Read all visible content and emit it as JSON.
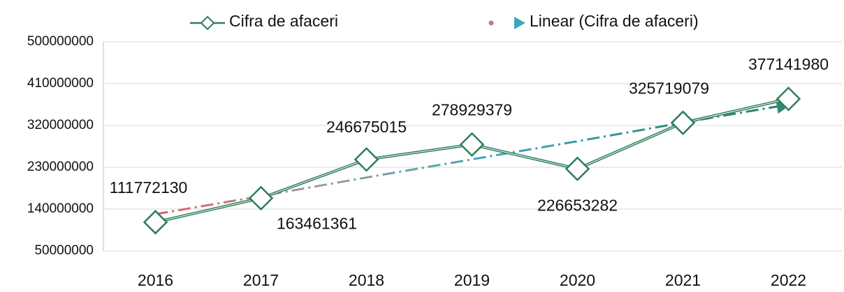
{
  "chart_data": {
    "type": "line",
    "categories": [
      "2016",
      "2017",
      "2018",
      "2019",
      "2020",
      "2021",
      "2022"
    ],
    "series": [
      {
        "name": "Cifra de afaceri",
        "color": "#2e7d5b",
        "values": [
          111772130,
          163461361,
          246675015,
          278929379,
          226653282,
          325719079,
          377141980
        ]
      },
      {
        "name": "Linear (Cifra de afaceri)",
        "color": "#3aa6b9",
        "values": [
          129000000,
          168000000,
          208000000,
          247000000,
          286000000,
          326000000,
          365000000
        ]
      }
    ],
    "ylim": [
      50000000,
      500000000
    ],
    "yticks": [
      50000000,
      140000000,
      230000000,
      320000000,
      410000000,
      500000000
    ],
    "grid": true,
    "legend": "top"
  }
}
